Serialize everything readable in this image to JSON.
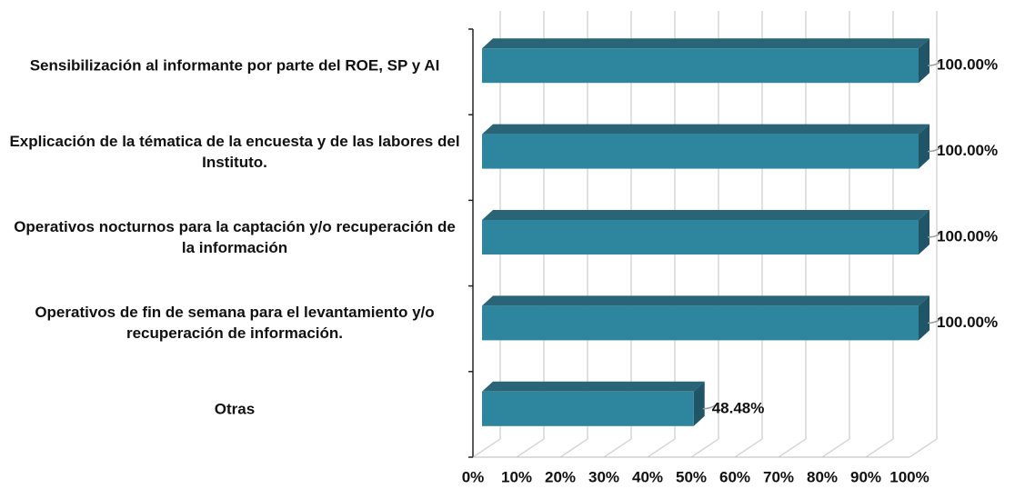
{
  "chart_data": {
    "type": "bar",
    "orientation": "horizontal",
    "three_d": true,
    "categories": [
      "Sensibilización al informante por parte del ROE, SP y AI",
      "Explicación de la tématica de la encuesta y de las labores del Instituto.",
      "Operativos nocturnos para la captación y/o recuperación de la información",
      "Operativos de fin de semana para el levantamiento y/o recuperación de información.",
      "Otras"
    ],
    "values": [
      100,
      100,
      100,
      100,
      48.48
    ],
    "value_labels": [
      "100.00%",
      "100.00%",
      "100.00%",
      "100.00%",
      "48.48%"
    ],
    "color": "#2e869e",
    "xlim": [
      0,
      100
    ],
    "xticks": [
      {
        "value": 0,
        "label": "0%"
      },
      {
        "value": 10,
        "label": "10%"
      },
      {
        "value": 20,
        "label": "20%"
      },
      {
        "value": 30,
        "label": "30%"
      },
      {
        "value": 40,
        "label": "40%"
      },
      {
        "value": 50,
        "label": "50%"
      },
      {
        "value": 60,
        "label": "60%"
      },
      {
        "value": 70,
        "label": "70%"
      },
      {
        "value": 80,
        "label": "80%"
      },
      {
        "value": 90,
        "label": "90%"
      },
      {
        "value": 100,
        "label": "100%"
      }
    ],
    "grid": true
  }
}
